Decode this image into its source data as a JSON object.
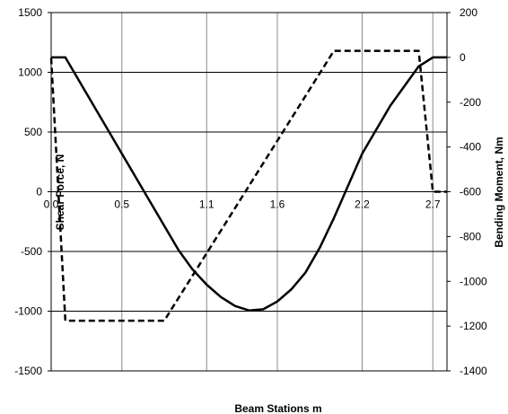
{
  "chart_data": {
    "type": "line",
    "xlabel": "Beam  Stations m",
    "ylabel_left": "Shear Force, N",
    "ylabel_right": "Bending Moment, Nm",
    "xlim": [
      0,
      2.8
    ],
    "ylim_left": [
      -1500,
      1500
    ],
    "ylim_right": [
      -1400,
      200
    ],
    "x_ticks": [
      0,
      0.5,
      1.1,
      1.6,
      2.2,
      2.7
    ],
    "x_tick_labels": [
      "0.0",
      "0.5",
      "1.1",
      "1.6",
      "2.2",
      "2.7"
    ],
    "y_left_ticks": [
      1500,
      1000,
      500,
      0,
      -500,
      -1000,
      -1500
    ],
    "y_left_tick_labels": [
      "1500",
      "1000",
      "500",
      "0",
      "-500",
      "-1000",
      "-1500"
    ],
    "y_right_ticks": [
      200,
      0,
      -200,
      -400,
      -600,
      -800,
      -1000,
      -1200,
      -1400
    ],
    "y_right_tick_labels": [
      "200",
      "0",
      "-200",
      "-400",
      "-600",
      "-800",
      "-1000",
      "-1200",
      "-1400"
    ],
    "grid": true,
    "series": [
      {
        "axis": "right",
        "style": "solid",
        "color": "#000000",
        "x": [
          0.0,
          0.1,
          0.3,
          0.5,
          0.7,
          0.9,
          1.0,
          1.1,
          1.2,
          1.3,
          1.4,
          1.5,
          1.6,
          1.7,
          1.8,
          1.9,
          2.0,
          2.2,
          2.4,
          2.6,
          2.7,
          2.8
        ],
        "y": [
          0,
          0,
          -215,
          -430,
          -645,
          -860,
          -947,
          -1015,
          -1070,
          -1110,
          -1130,
          -1125,
          -1090,
          -1035,
          -960,
          -850,
          -718,
          -430,
          -215,
          -40,
          0,
          0
        ]
      },
      {
        "axis": "left",
        "style": "dashed",
        "color": "#000000",
        "x": [
          0.0,
          0.1,
          0.8,
          2.0,
          2.6,
          2.7,
          2.8
        ],
        "y": [
          1120,
          -1080,
          -1080,
          1180,
          1180,
          0,
          0
        ]
      }
    ]
  }
}
